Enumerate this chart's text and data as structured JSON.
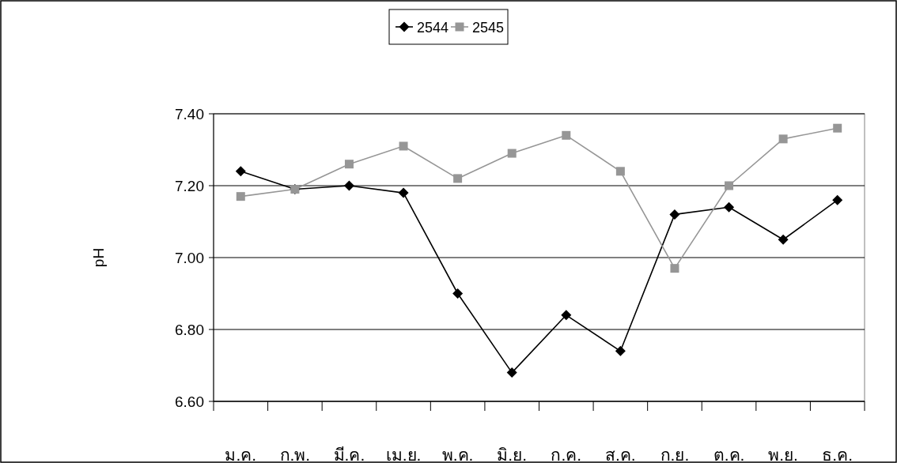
{
  "chart_data": {
    "type": "line",
    "ylabel": "pH",
    "categories": [
      "ม.ค.",
      "ก.พ.",
      "มี.ค.",
      "เม.ย.",
      "พ.ค.",
      "มิ.ย.",
      "ก.ค.",
      "ส.ค.",
      "ก.ย.",
      "ต.ค.",
      "พ.ย.",
      "ธ.ค."
    ],
    "series": [
      {
        "name": "2544",
        "color": "#000000",
        "marker": "diamond",
        "values": [
          7.24,
          7.19,
          7.2,
          7.18,
          6.9,
          6.68,
          6.84,
          6.74,
          7.12,
          7.14,
          7.05,
          7.16
        ]
      },
      {
        "name": "2545",
        "color": "#969696",
        "marker": "square",
        "values": [
          7.17,
          7.19,
          7.26,
          7.31,
          7.22,
          7.29,
          7.34,
          7.24,
          6.97,
          7.2,
          7.33,
          7.36
        ]
      }
    ],
    "ylim": [
      6.6,
      7.4
    ],
    "yticks": [
      {
        "value": 6.6,
        "label": "6.60"
      },
      {
        "value": 6.8,
        "label": "6.80"
      },
      {
        "value": 7.0,
        "label": "7.00"
      },
      {
        "value": 7.2,
        "label": "7.20"
      },
      {
        "value": 7.4,
        "label": "7.40"
      }
    ],
    "grid": "y",
    "legend": "top",
    "line_style": "solid"
  }
}
